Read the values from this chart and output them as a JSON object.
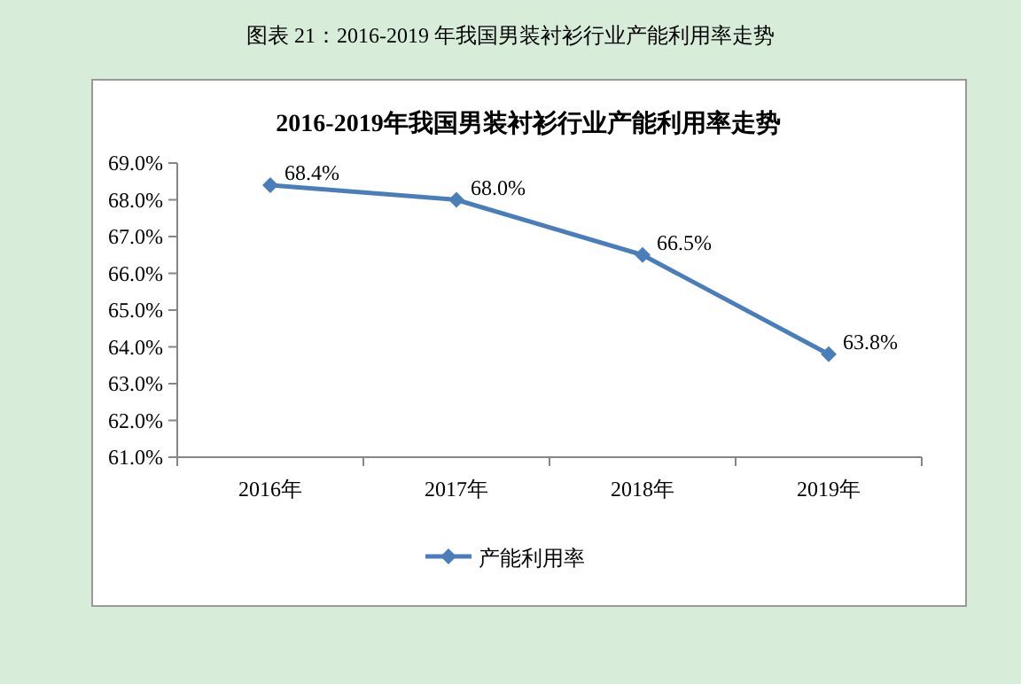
{
  "chart_data": {
    "type": "line",
    "title": "图表 21：2016-2019 年我国男装衬衫行业产能利用率走势",
    "subtitle": "2016-2019年我国男装衬衫行业产能利用率走势",
    "categories": [
      "2016年",
      "2017年",
      "2018年",
      "2019年"
    ],
    "series": [
      {
        "name": "产能利用率",
        "color": "#4a7ebb",
        "values": [
          68.4,
          68.0,
          66.5,
          63.8
        ],
        "value_labels": [
          "68.4%",
          "68.0%",
          "66.5%",
          "63.8%"
        ]
      }
    ],
    "ylim": [
      61,
      69
    ],
    "yticks": [
      {
        "value": 61,
        "label": "61.0%"
      },
      {
        "value": 62,
        "label": "62.0%"
      },
      {
        "value": 63,
        "label": "63.0%"
      },
      {
        "value": 64,
        "label": "64.0%"
      },
      {
        "value": 65,
        "label": "65.0%"
      },
      {
        "value": 66,
        "label": "66.0%"
      },
      {
        "value": 67,
        "label": "67.0%"
      },
      {
        "value": 68,
        "label": "68.0%"
      },
      {
        "value": 69,
        "label": "69.0%"
      }
    ],
    "marker": "diamond",
    "line_style": "solid",
    "legend": "bottom"
  }
}
